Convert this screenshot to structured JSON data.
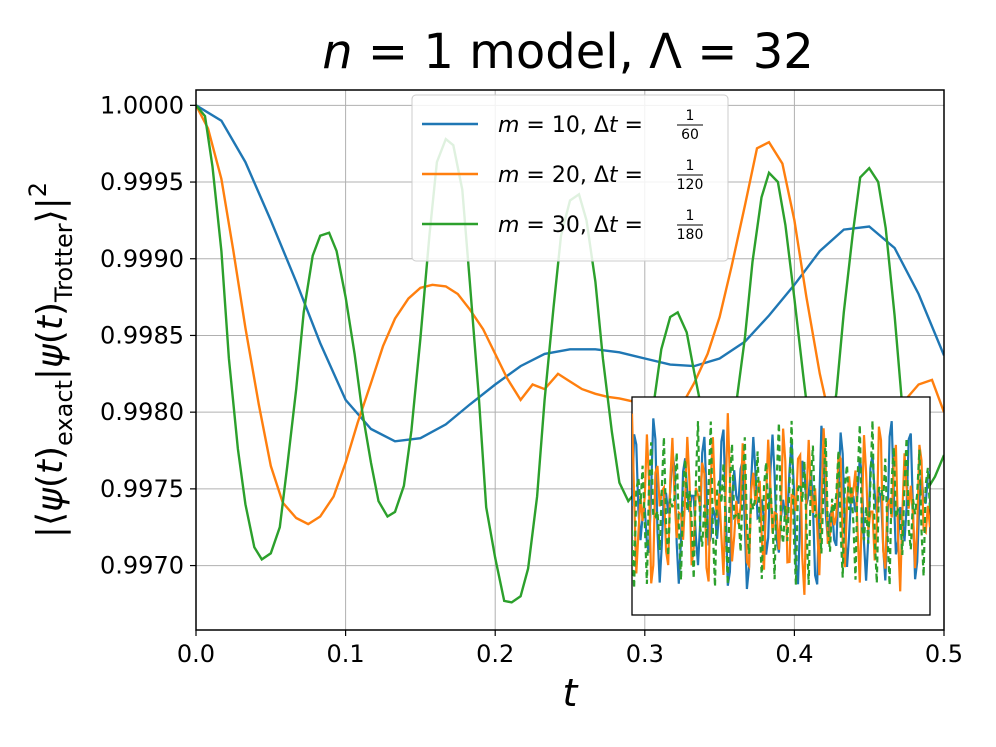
{
  "chart_data": {
    "type": "line",
    "title": "n = 1 model, Λ = 32",
    "xlabel": "t",
    "ylabel": "|⟨ψ(t)exact|ψ(t)Trotter⟩|²",
    "xlim": [
      0.0,
      0.5
    ],
    "ylim": [
      0.99658,
      1.0001
    ],
    "grid": true,
    "legend_placement": "top-center",
    "x_ticks": [
      "0.0",
      "0.1",
      "0.2",
      "0.3",
      "0.4",
      "0.5"
    ],
    "y_ticks": [
      "1.0000",
      "0.9995",
      "0.9990",
      "0.9985",
      "0.9980",
      "0.9975",
      "0.9970"
    ],
    "series": [
      {
        "name": "m = 10, Δt = 1/60",
        "m": "10",
        "dt_num": "1",
        "dt_den": "60",
        "color": "#1f77b4",
        "x": [
          0.0,
          0.017,
          0.033,
          0.05,
          0.067,
          0.083,
          0.1,
          0.117,
          0.133,
          0.15,
          0.167,
          0.183,
          0.2,
          0.217,
          0.233,
          0.25,
          0.267,
          0.283,
          0.3,
          0.317,
          0.333,
          0.35,
          0.367,
          0.383,
          0.4,
          0.417,
          0.433,
          0.45,
          0.467,
          0.483,
          0.5
        ],
        "y": [
          1.0,
          0.9999,
          0.99963,
          0.99925,
          0.99885,
          0.99845,
          0.99808,
          0.99789,
          0.99781,
          0.99783,
          0.99792,
          0.99805,
          0.99818,
          0.9983,
          0.99838,
          0.99841,
          0.99841,
          0.99839,
          0.99835,
          0.99831,
          0.9983,
          0.99835,
          0.99846,
          0.99863,
          0.99883,
          0.99905,
          0.99919,
          0.99921,
          0.99907,
          0.99877,
          0.99837
        ]
      },
      {
        "name": "m = 20, Δt = 1/120",
        "m": "20",
        "dt_num": "1",
        "dt_den": "120",
        "color": "#ff7f0e",
        "x": [
          0.0,
          0.008,
          0.017,
          0.025,
          0.033,
          0.042,
          0.05,
          0.058,
          0.067,
          0.075,
          0.083,
          0.092,
          0.1,
          0.108,
          0.117,
          0.125,
          0.133,
          0.142,
          0.15,
          0.158,
          0.167,
          0.175,
          0.183,
          0.192,
          0.2,
          0.208,
          0.217,
          0.225,
          0.233,
          0.242,
          0.25,
          0.258,
          0.267,
          0.275,
          0.283,
          0.292,
          0.3,
          0.308,
          0.317,
          0.325,
          0.333,
          0.342,
          0.35,
          0.358,
          0.367,
          0.375,
          0.383,
          0.392,
          0.4,
          0.408,
          0.417,
          0.425,
          0.433,
          0.442,
          0.45,
          0.458,
          0.467,
          0.475,
          0.483,
          0.492,
          0.5
        ],
        "y": [
          1.0,
          0.99985,
          0.99952,
          0.99905,
          0.99855,
          0.99805,
          0.99765,
          0.99741,
          0.99731,
          0.99727,
          0.99732,
          0.99745,
          0.99767,
          0.99793,
          0.99819,
          0.99843,
          0.99861,
          0.99874,
          0.99881,
          0.99883,
          0.99882,
          0.99877,
          0.99867,
          0.99854,
          0.99838,
          0.99822,
          0.99808,
          0.99818,
          0.99815,
          0.99825,
          0.9982,
          0.99815,
          0.99812,
          0.9981,
          0.99809,
          0.99807,
          0.99803,
          0.99798,
          0.99795,
          0.99805,
          0.99819,
          0.99838,
          0.99862,
          0.99895,
          0.99935,
          0.99972,
          0.99976,
          0.99962,
          0.99925,
          0.99875,
          0.99825,
          0.9979,
          0.9977,
          0.99764,
          0.99769,
          0.99782,
          0.99796,
          0.99809,
          0.99818,
          0.99821,
          0.998
        ]
      },
      {
        "name": "m = 30, Δt = 1/180",
        "m": "30",
        "dt_num": "1",
        "dt_den": "180",
        "color": "#2ca02c",
        "x": [
          0.0,
          0.006,
          0.011,
          0.017,
          0.022,
          0.028,
          0.033,
          0.039,
          0.044,
          0.05,
          0.056,
          0.061,
          0.067,
          0.072,
          0.078,
          0.083,
          0.089,
          0.094,
          0.1,
          0.106,
          0.111,
          0.117,
          0.122,
          0.128,
          0.133,
          0.139,
          0.144,
          0.15,
          0.156,
          0.161,
          0.167,
          0.172,
          0.178,
          0.183,
          0.189,
          0.194,
          0.2,
          0.206,
          0.211,
          0.217,
          0.222,
          0.228,
          0.233,
          0.239,
          0.244,
          0.25,
          0.256,
          0.261,
          0.267,
          0.272,
          0.278,
          0.283,
          0.289,
          0.294,
          0.3,
          0.306,
          0.311,
          0.317,
          0.322,
          0.328,
          0.333,
          0.339,
          0.344,
          0.35,
          0.356,
          0.361,
          0.367,
          0.372,
          0.378,
          0.383,
          0.389,
          0.394,
          0.4,
          0.406,
          0.411,
          0.417,
          0.422,
          0.428,
          0.433,
          0.439,
          0.444,
          0.45,
          0.456,
          0.461,
          0.467,
          0.472,
          0.478,
          0.483,
          0.489,
          0.494,
          0.5
        ],
        "y": [
          1.0,
          0.99993,
          0.9996,
          0.99905,
          0.99835,
          0.99776,
          0.9974,
          0.99712,
          0.99704,
          0.99708,
          0.99725,
          0.99765,
          0.99815,
          0.99865,
          0.99902,
          0.99915,
          0.99917,
          0.99905,
          0.99875,
          0.99838,
          0.99801,
          0.99767,
          0.99742,
          0.99732,
          0.99735,
          0.99752,
          0.99788,
          0.99848,
          0.99915,
          0.99963,
          0.99978,
          0.99974,
          0.99945,
          0.99885,
          0.99811,
          0.99738,
          0.99705,
          0.99677,
          0.99676,
          0.9968,
          0.99698,
          0.99745,
          0.99808,
          0.99868,
          0.99915,
          0.99938,
          0.99942,
          0.99925,
          0.99885,
          0.99835,
          0.99787,
          0.99754,
          0.99742,
          0.99748,
          0.99772,
          0.99806,
          0.99841,
          0.99862,
          0.99865,
          0.99852,
          0.99826,
          0.99797,
          0.99774,
          0.99766,
          0.99775,
          0.99805,
          0.99849,
          0.99898,
          0.9994,
          0.99956,
          0.9995,
          0.99922,
          0.99874,
          0.99823,
          0.99783,
          0.99768,
          0.99778,
          0.99812,
          0.99865,
          0.99916,
          0.99953,
          0.99959,
          0.9995,
          0.9992,
          0.99863,
          0.99805,
          0.99768,
          0.99751,
          0.9975,
          0.99758,
          0.99772
        ]
      }
    ],
    "inset": {
      "description_free": true,
      "series_colors": [
        "#1f77b4",
        "#ff7f0e",
        "#2ca02c"
      ],
      "line_styles": [
        "solid",
        "solid",
        "dashed"
      ]
    }
  }
}
